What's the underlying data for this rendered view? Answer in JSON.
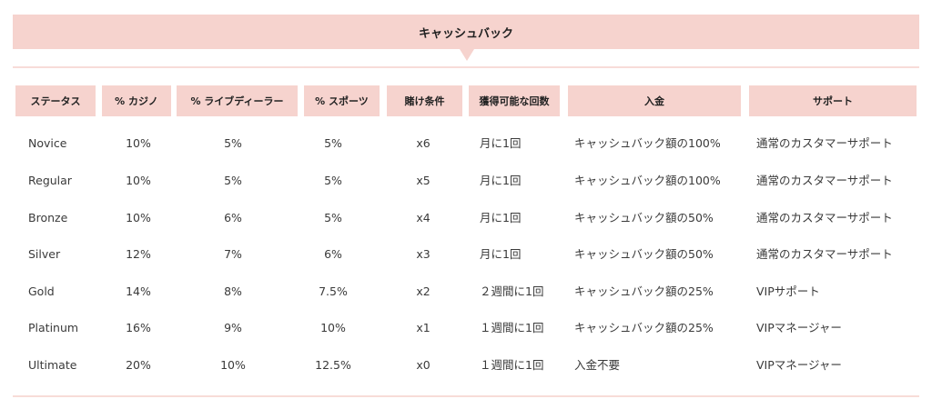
{
  "banner": {
    "title": "キャッシュバック"
  },
  "table": {
    "headers": [
      "ステータス",
      "% カジノ",
      "% ライブディーラー",
      "% スポーツ",
      "賭け条件",
      "獲得可能な回数",
      "入金",
      "サポート"
    ],
    "rows": [
      [
        "Novice",
        "10%",
        "5%",
        "5%",
        "x6",
        "月に1回",
        "キャッシュバック額の100%",
        "通常のカスタマーサポート"
      ],
      [
        "Regular",
        "10%",
        "5%",
        "5%",
        "x5",
        "月に1回",
        "キャッシュバック額の100%",
        "通常のカスタマーサポート"
      ],
      [
        "Bronze",
        "10%",
        "6%",
        "5%",
        "x4",
        "月に1回",
        "キャッシュバック額の50%",
        "通常のカスタマーサポート"
      ],
      [
        "Silver",
        "12%",
        "7%",
        "6%",
        "x3",
        "月に1回",
        "キャッシュバック額の50%",
        "通常のカスタマーサポート"
      ],
      [
        "Gold",
        "14%",
        "8%",
        "7.5%",
        "x2",
        "２週間に1回",
        "キャッシュバック額の25%",
        "VIPサポート"
      ],
      [
        "Platinum",
        "16%",
        "9%",
        "10%",
        "x1",
        "１週間に1回",
        "キャッシュバック額の25%",
        "VIPマネージャー"
      ],
      [
        "Ultimate",
        "20%",
        "10%",
        "12.5%",
        "x0",
        "１週間に1回",
        "入金不要",
        "VIPマネージャー"
      ]
    ]
  },
  "colors": {
    "header_background": "#f6d3ce",
    "rule": "#f8dcd8",
    "text": "#3a3a3a"
  }
}
